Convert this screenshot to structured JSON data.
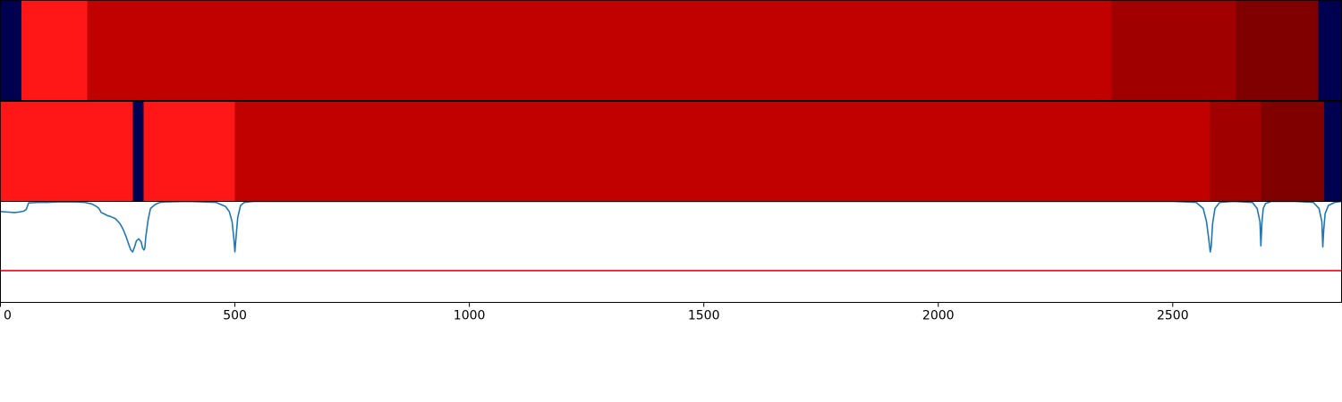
{
  "chart_data": [
    {
      "type": "heatmap",
      "xlim": [
        0,
        2860
      ],
      "segments": [
        {
          "x0": 0,
          "x1": 45,
          "color": "#000050"
        },
        {
          "x0": 45,
          "x1": 185,
          "color": "#ff1616"
        },
        {
          "x0": 185,
          "x1": 2370,
          "color": "#c10000"
        },
        {
          "x0": 2370,
          "x1": 2635,
          "color": "#a00000"
        },
        {
          "x0": 2635,
          "x1": 2810,
          "color": "#800000"
        },
        {
          "x0": 2810,
          "x1": 2860,
          "color": "#000050"
        }
      ]
    },
    {
      "type": "heatmap",
      "xlim": [
        0,
        2860
      ],
      "segments": [
        {
          "x0": 0,
          "x1": 282,
          "color": "#ff1616"
        },
        {
          "x0": 282,
          "x1": 305,
          "color": "#000050"
        },
        {
          "x0": 305,
          "x1": 500,
          "color": "#ff1616"
        },
        {
          "x0": 500,
          "x1": 2580,
          "color": "#c10000"
        },
        {
          "x0": 2580,
          "x1": 2688,
          "color": "#a00000"
        },
        {
          "x0": 2688,
          "x1": 2823,
          "color": "#800000"
        },
        {
          "x0": 2823,
          "x1": 2860,
          "color": "#000050"
        }
      ]
    },
    {
      "type": "line",
      "xlim": [
        0,
        2860
      ],
      "ylim": [
        0,
        1
      ],
      "xticks": [
        0,
        500,
        1000,
        1500,
        2000,
        2500
      ],
      "xtick_labels": [
        "0",
        "500",
        "1000",
        "1500",
        "2000",
        "2500"
      ],
      "grid": false,
      "series": [
        {
          "color": "#1f77b4",
          "x": [
            0,
            15,
            30,
            40,
            50,
            55,
            60,
            80,
            100,
            120,
            140,
            160,
            180,
            195,
            205,
            210,
            215,
            222,
            228,
            235,
            245,
            255,
            262,
            268,
            274,
            278,
            282,
            286,
            290,
            295,
            300,
            303,
            306,
            308,
            310,
            315,
            320,
            330,
            340,
            350,
            400,
            460,
            480,
            488,
            494,
            498,
            500,
            502,
            506,
            512,
            520,
            540,
            1000,
            1500,
            2000,
            2500,
            2550,
            2565,
            2572,
            2577,
            2580,
            2582,
            2585,
            2590,
            2600,
            2630,
            2670,
            2680,
            2686,
            2688,
            2690,
            2693,
            2698,
            2710,
            2760,
            2800,
            2812,
            2818,
            2820,
            2822,
            2825,
            2832,
            2845,
            2860
          ],
          "y": [
            0.9,
            0.895,
            0.89,
            0.895,
            0.905,
            0.92,
            0.985,
            0.99,
            0.99,
            0.995,
            0.995,
            0.995,
            0.99,
            0.975,
            0.95,
            0.93,
            0.89,
            0.875,
            0.86,
            0.85,
            0.83,
            0.78,
            0.72,
            0.65,
            0.57,
            0.52,
            0.5,
            0.55,
            0.61,
            0.63,
            0.6,
            0.54,
            0.52,
            0.54,
            0.65,
            0.82,
            0.93,
            0.97,
            0.99,
            0.995,
            1.0,
            0.99,
            0.95,
            0.9,
            0.8,
            0.62,
            0.5,
            0.62,
            0.84,
            0.96,
            0.99,
            1.0,
            1.0,
            1.0,
            1.0,
            1.0,
            0.99,
            0.93,
            0.8,
            0.62,
            0.5,
            0.55,
            0.78,
            0.93,
            0.99,
            1.0,
            0.99,
            0.93,
            0.8,
            0.56,
            0.78,
            0.93,
            0.98,
            1.0,
            1.0,
            0.99,
            0.93,
            0.8,
            0.55,
            0.72,
            0.88,
            0.96,
            0.99,
            1.0
          ]
        },
        {
          "color": "#ff0000",
          "x": [
            0,
            2860
          ],
          "y": [
            0.315,
            0.315
          ]
        }
      ]
    }
  ]
}
